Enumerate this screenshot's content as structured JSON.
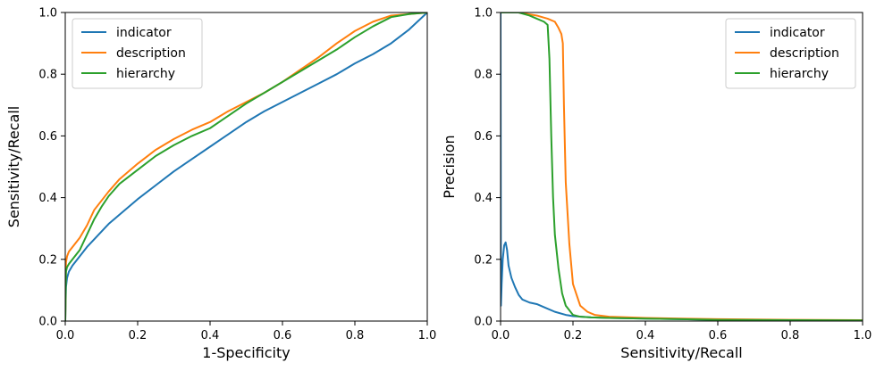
{
  "chart_data": [
    {
      "type": "line",
      "xlabel": "1-Specificity",
      "ylabel": "Sensitivity/Recall",
      "xlim": [
        0,
        1
      ],
      "ylim": [
        0,
        1
      ],
      "xticks": [
        "0.0",
        "0.2",
        "0.4",
        "0.6",
        "0.8",
        "1.0"
      ],
      "yticks": [
        "0.0",
        "0.2",
        "0.4",
        "0.6",
        "0.8",
        "1.0"
      ],
      "grid": false,
      "legend_position": "top-left",
      "series": [
        {
          "name": "indicator",
          "color": "#1f77b4",
          "x": [
            0,
            0.002,
            0.005,
            0.01,
            0.02,
            0.04,
            0.06,
            0.08,
            0.1,
            0.12,
            0.15,
            0.2,
            0.25,
            0.3,
            0.35,
            0.4,
            0.45,
            0.5,
            0.55,
            0.6,
            0.65,
            0.7,
            0.75,
            0.8,
            0.85,
            0.9,
            0.95,
            1.0
          ],
          "y": [
            0,
            0.11,
            0.14,
            0.16,
            0.18,
            0.21,
            0.24,
            0.265,
            0.29,
            0.315,
            0.345,
            0.395,
            0.44,
            0.485,
            0.525,
            0.565,
            0.605,
            0.645,
            0.68,
            0.71,
            0.74,
            0.77,
            0.8,
            0.835,
            0.865,
            0.9,
            0.945,
            1.0
          ]
        },
        {
          "name": "description",
          "color": "#ff7f0e",
          "x": [
            0,
            0.002,
            0.005,
            0.01,
            0.02,
            0.04,
            0.06,
            0.08,
            0.1,
            0.12,
            0.15,
            0.2,
            0.25,
            0.3,
            0.35,
            0.4,
            0.45,
            0.5,
            0.55,
            0.6,
            0.65,
            0.7,
            0.75,
            0.8,
            0.85,
            0.9,
            0.95,
            1.0
          ],
          "y": [
            0,
            0.19,
            0.21,
            0.225,
            0.24,
            0.27,
            0.31,
            0.36,
            0.39,
            0.42,
            0.46,
            0.51,
            0.555,
            0.59,
            0.62,
            0.645,
            0.68,
            0.71,
            0.74,
            0.775,
            0.815,
            0.855,
            0.9,
            0.94,
            0.97,
            0.99,
            0.995,
            1.0
          ]
        },
        {
          "name": "hierarchy",
          "color": "#2ca02c",
          "x": [
            0,
            0.002,
            0.005,
            0.01,
            0.02,
            0.04,
            0.06,
            0.08,
            0.1,
            0.12,
            0.15,
            0.2,
            0.25,
            0.3,
            0.35,
            0.4,
            0.45,
            0.5,
            0.55,
            0.6,
            0.65,
            0.7,
            0.75,
            0.8,
            0.85,
            0.9,
            0.95,
            1.0
          ],
          "y": [
            0,
            0.16,
            0.175,
            0.185,
            0.2,
            0.23,
            0.28,
            0.33,
            0.37,
            0.405,
            0.445,
            0.49,
            0.535,
            0.57,
            0.6,
            0.625,
            0.665,
            0.705,
            0.74,
            0.775,
            0.81,
            0.845,
            0.88,
            0.92,
            0.955,
            0.985,
            0.995,
            1.0
          ]
        }
      ]
    },
    {
      "type": "line",
      "xlabel": "Sensitivity/Recall",
      "ylabel": "Precision",
      "xlim": [
        0,
        1
      ],
      "ylim": [
        0,
        1
      ],
      "xticks": [
        "0.0",
        "0.2",
        "0.4",
        "0.6",
        "0.8",
        "1.0"
      ],
      "yticks": [
        "0.0",
        "0.2",
        "0.4",
        "0.6",
        "0.8",
        "1.0"
      ],
      "grid": false,
      "legend_position": "top-right",
      "series": [
        {
          "name": "indicator",
          "color": "#1f77b4",
          "x": [
            0,
            0.001,
            0.003,
            0.006,
            0.01,
            0.014,
            0.018,
            0.022,
            0.03,
            0.04,
            0.05,
            0.06,
            0.08,
            0.1,
            0.12,
            0.15,
            0.18,
            0.2,
            0.25,
            0.3,
            0.4,
            0.5,
            0.6,
            0.8,
            1.0
          ],
          "y": [
            1.0,
            0.05,
            0.12,
            0.2,
            0.245,
            0.255,
            0.23,
            0.18,
            0.14,
            0.11,
            0.085,
            0.07,
            0.06,
            0.055,
            0.045,
            0.03,
            0.02,
            0.016,
            0.012,
            0.01,
            0.008,
            0.006,
            0.004,
            0.003,
            0.002
          ]
        },
        {
          "name": "description",
          "color": "#ff7f0e",
          "x": [
            0,
            0.01,
            0.05,
            0.1,
            0.13,
            0.15,
            0.16,
            0.168,
            0.172,
            0.175,
            0.18,
            0.19,
            0.2,
            0.22,
            0.24,
            0.26,
            0.3,
            0.4,
            0.5,
            0.6,
            0.8,
            1.0
          ],
          "y": [
            1.0,
            1.0,
            1.0,
            0.99,
            0.98,
            0.97,
            0.95,
            0.93,
            0.9,
            0.7,
            0.45,
            0.25,
            0.12,
            0.05,
            0.03,
            0.02,
            0.014,
            0.01,
            0.008,
            0.006,
            0.004,
            0.003
          ]
        },
        {
          "name": "hierarchy",
          "color": "#2ca02c",
          "x": [
            0,
            0.01,
            0.05,
            0.08,
            0.1,
            0.12,
            0.13,
            0.135,
            0.14,
            0.145,
            0.15,
            0.16,
            0.17,
            0.18,
            0.2,
            0.22,
            0.25,
            0.3,
            0.4,
            0.5,
            0.6,
            0.8,
            1.0
          ],
          "y": [
            1.0,
            1.0,
            1.0,
            0.99,
            0.98,
            0.97,
            0.96,
            0.85,
            0.6,
            0.4,
            0.28,
            0.17,
            0.09,
            0.05,
            0.02,
            0.014,
            0.012,
            0.01,
            0.008,
            0.006,
            0.004,
            0.003,
            0.002
          ]
        }
      ]
    }
  ]
}
